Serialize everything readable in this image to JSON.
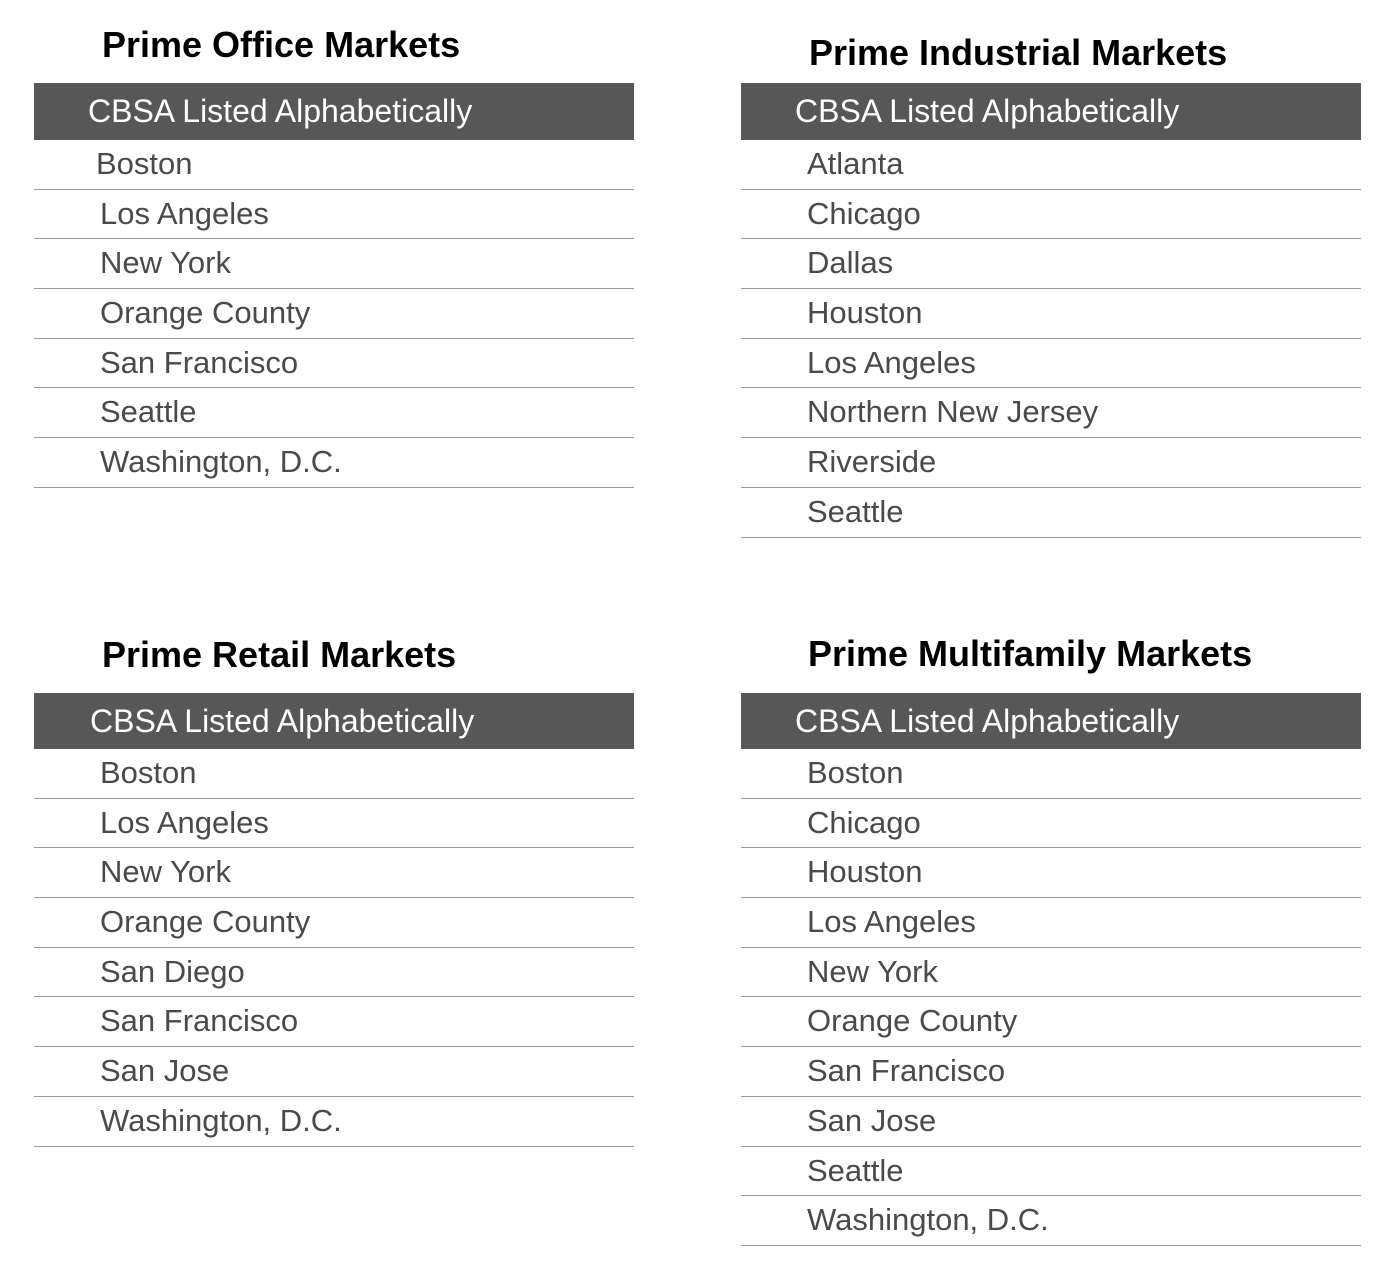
{
  "panels": [
    {
      "title": "Prime Office Markets",
      "header": "CBSA Listed Alphabetically",
      "items": [
        "Boston",
        "Los Angeles",
        "New York",
        "Orange County",
        "San Francisco",
        "Seattle",
        "Washington, D.C."
      ]
    },
    {
      "title": "Prime Industrial Markets",
      "header": "CBSA Listed Alphabetically",
      "items": [
        "Atlanta",
        "Chicago",
        "Dallas",
        "Houston",
        "Los Angeles",
        "Northern New Jersey",
        "Riverside",
        "Seattle"
      ]
    },
    {
      "title": "Prime Retail Markets",
      "header": "CBSA Listed Alphabetically",
      "items": [
        "Boston",
        "Los Angeles",
        "New York",
        "Orange County",
        "San Diego",
        "San Francisco",
        "San Jose",
        "Washington, D.C."
      ]
    },
    {
      "title": "Prime Multifamily Markets",
      "header": "CBSA Listed Alphabetically",
      "items": [
        "Boston",
        "Chicago",
        "Houston",
        "Los Angeles",
        "New York",
        "Orange County",
        "San Francisco",
        "San Jose",
        "Seattle",
        "Washington, D.C."
      ]
    }
  ]
}
